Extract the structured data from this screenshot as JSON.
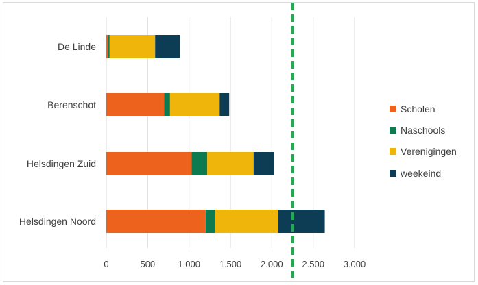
{
  "chart_data": {
    "type": "bar",
    "orientation": "horizontal",
    "stacked": true,
    "title": "",
    "xlabel": "",
    "ylabel": "",
    "categories": [
      "De Linde",
      "Berenschot",
      "Helsdingen Zuid",
      "Helsdingen Noord"
    ],
    "series": [
      {
        "name": "Scholen",
        "color": "#ED621C",
        "values": [
          20,
          700,
          1030,
          1200
        ]
      },
      {
        "name": "Naschools",
        "color": "#0E7A50",
        "values": [
          20,
          70,
          190,
          110
        ]
      },
      {
        "name": "Verenigingen",
        "color": "#EFB50A",
        "values": [
          550,
          600,
          560,
          770
        ]
      },
      {
        "name": "weekeind",
        "color": "#0C3D54",
        "values": [
          300,
          115,
          250,
          560
        ]
      }
    ],
    "xlim": [
      0,
      3000
    ],
    "x_ticks": [
      0,
      500,
      1000,
      1500,
      2000,
      2500,
      3000
    ],
    "x_tick_labels": [
      "0",
      "500",
      "1.000",
      "1.500",
      "2.000",
      "2.500",
      "3.000"
    ],
    "grid": "vertical",
    "legend": "right",
    "reference_line": {
      "value": 2250,
      "color": "#1DAE4E",
      "style": "dashed"
    }
  }
}
